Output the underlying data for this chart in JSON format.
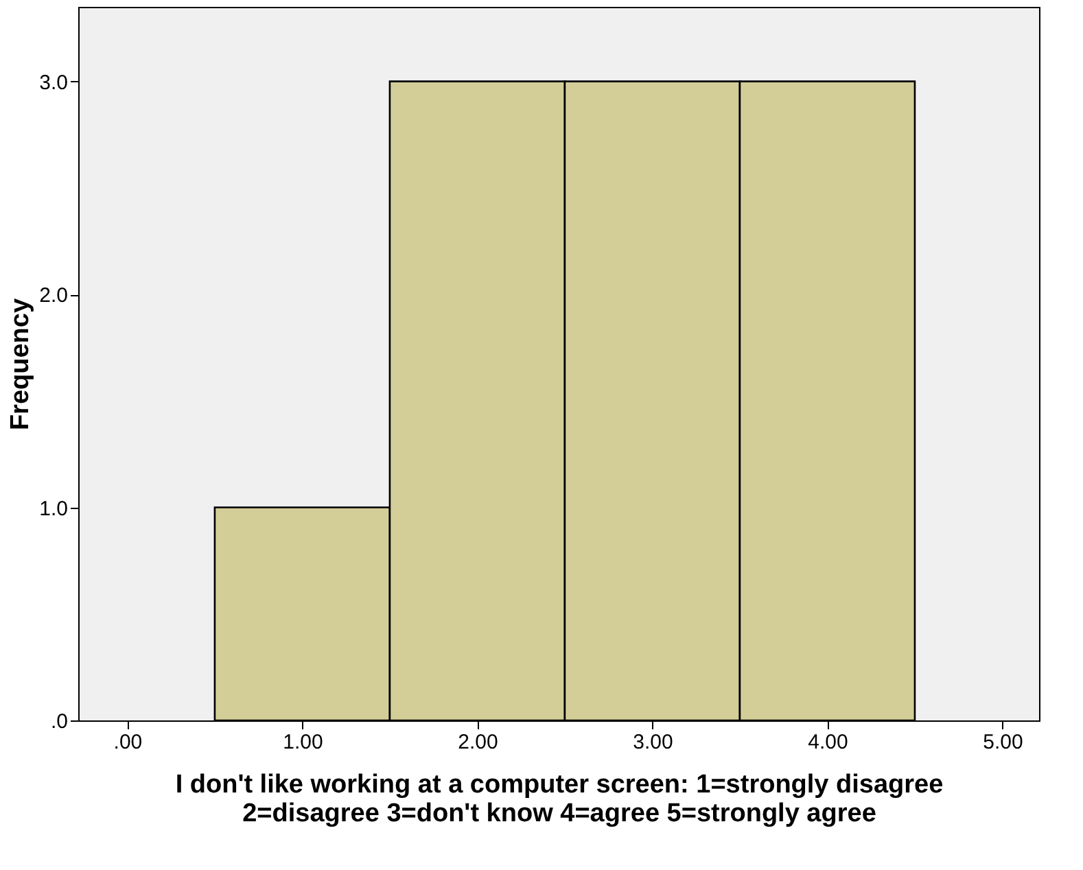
{
  "chart_data": {
    "type": "histogram",
    "xlabel": "I don't like working at a computer screen: 1=strongly disagree 2=disagree 3=don't know 4=agree 5=strongly agree",
    "ylabel": "Frequency",
    "bins": [
      0.5,
      1.5,
      2.5,
      3.5,
      4.5
    ],
    "values": [
      1,
      3,
      3,
      3
    ],
    "color": "#d3ce98",
    "xlim": [
      -0.28,
      5.21
    ],
    "ylim": [
      0,
      3.35
    ],
    "xticks": [
      {
        "value": 0,
        "label": ".00"
      },
      {
        "value": 1,
        "label": "1.00"
      },
      {
        "value": 2,
        "label": "2.00"
      },
      {
        "value": 3,
        "label": "3.00"
      },
      {
        "value": 4,
        "label": "4.00"
      },
      {
        "value": 5,
        "label": "5.00"
      }
    ],
    "yticks": [
      {
        "value": 0,
        "label": ".0"
      },
      {
        "value": 1,
        "label": "1.0"
      },
      {
        "value": 2,
        "label": "2.0"
      },
      {
        "value": 3,
        "label": "3.0"
      }
    ],
    "grid": false
  }
}
